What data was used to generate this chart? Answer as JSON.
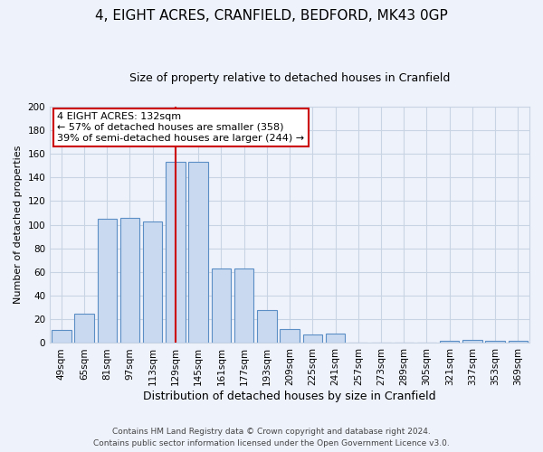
{
  "title": "4, EIGHT ACRES, CRANFIELD, BEDFORD, MK43 0GP",
  "subtitle": "Size of property relative to detached houses in Cranfield",
  "xlabel": "Distribution of detached houses by size in Cranfield",
  "ylabel": "Number of detached properties",
  "bin_labels": [
    "49sqm",
    "65sqm",
    "81sqm",
    "97sqm",
    "113sqm",
    "129sqm",
    "145sqm",
    "161sqm",
    "177sqm",
    "193sqm",
    "209sqm",
    "225sqm",
    "241sqm",
    "257sqm",
    "273sqm",
    "289sqm",
    "305sqm",
    "321sqm",
    "337sqm",
    "353sqm",
    "369sqm"
  ],
  "bar_values": [
    11,
    25,
    105,
    106,
    103,
    153,
    153,
    63,
    63,
    28,
    12,
    7,
    8,
    0,
    0,
    0,
    0,
    2,
    3,
    2,
    2
  ],
  "bar_color": "#c9daf0",
  "bar_edge_color": "#5b8ec4",
  "marker_bin_index": 5,
  "ylim": [
    0,
    200
  ],
  "yticks": [
    0,
    20,
    40,
    60,
    80,
    100,
    120,
    140,
    160,
    180,
    200
  ],
  "annotation_title": "4 EIGHT ACRES: 132sqm",
  "annotation_line1": "← 57% of detached houses are smaller (358)",
  "annotation_line2": "39% of semi-detached houses are larger (244) →",
  "annotation_box_color": "#ffffff",
  "annotation_box_edge": "#cc0000",
  "marker_line_color": "#cc0000",
  "grid_color": "#c8d4e3",
  "footer_line1": "Contains HM Land Registry data © Crown copyright and database right 2024.",
  "footer_line2": "Contains public sector information licensed under the Open Government Licence v3.0.",
  "background_color": "#eef2fb",
  "title_fontsize": 11,
  "subtitle_fontsize": 9,
  "ylabel_fontsize": 8,
  "xlabel_fontsize": 9,
  "tick_fontsize": 7.5,
  "annotation_fontsize": 8,
  "footer_fontsize": 6.5
}
